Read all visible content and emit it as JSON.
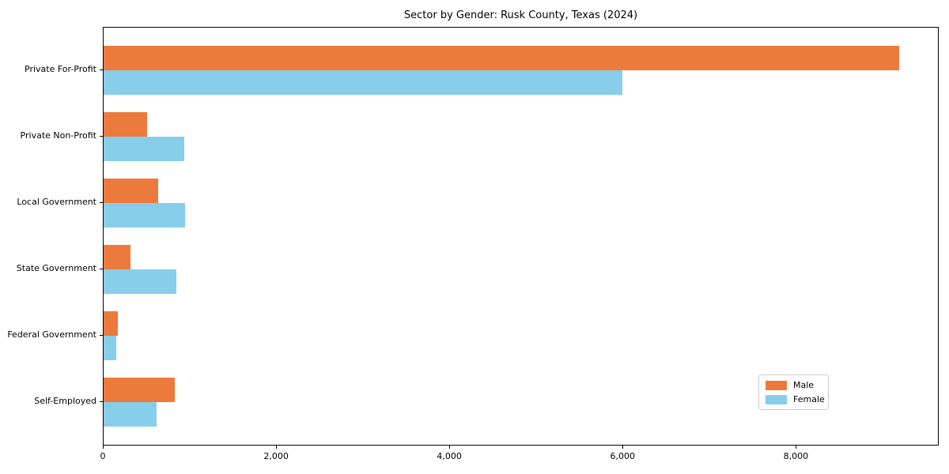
{
  "chart_data": {
    "type": "bar",
    "orientation": "horizontal",
    "title": "Sector by Gender: Rusk County, Texas (2024)",
    "categories": [
      "Private For-Profit",
      "Private Non-Profit",
      "Local Government",
      "State Government",
      "Federal Government",
      "Self-Employed"
    ],
    "series": [
      {
        "name": "Male",
        "color": "#ec7a3c",
        "values": [
          9180,
          500,
          630,
          310,
          160,
          820
        ]
      },
      {
        "name": "Female",
        "color": "#87ceeb",
        "values": [
          5990,
          930,
          940,
          840,
          150,
          610
        ]
      }
    ],
    "xlabel": "",
    "ylabel": "",
    "xlim": [
      0,
      9640
    ],
    "xticks": [
      0,
      2000,
      4000,
      6000,
      8000
    ],
    "xtick_labels": [
      "0",
      "2,000",
      "4,000",
      "6,000",
      "8,000"
    ],
    "grid": false,
    "legend": {
      "position": "lower right",
      "entries": [
        "Male",
        "Female"
      ]
    }
  }
}
